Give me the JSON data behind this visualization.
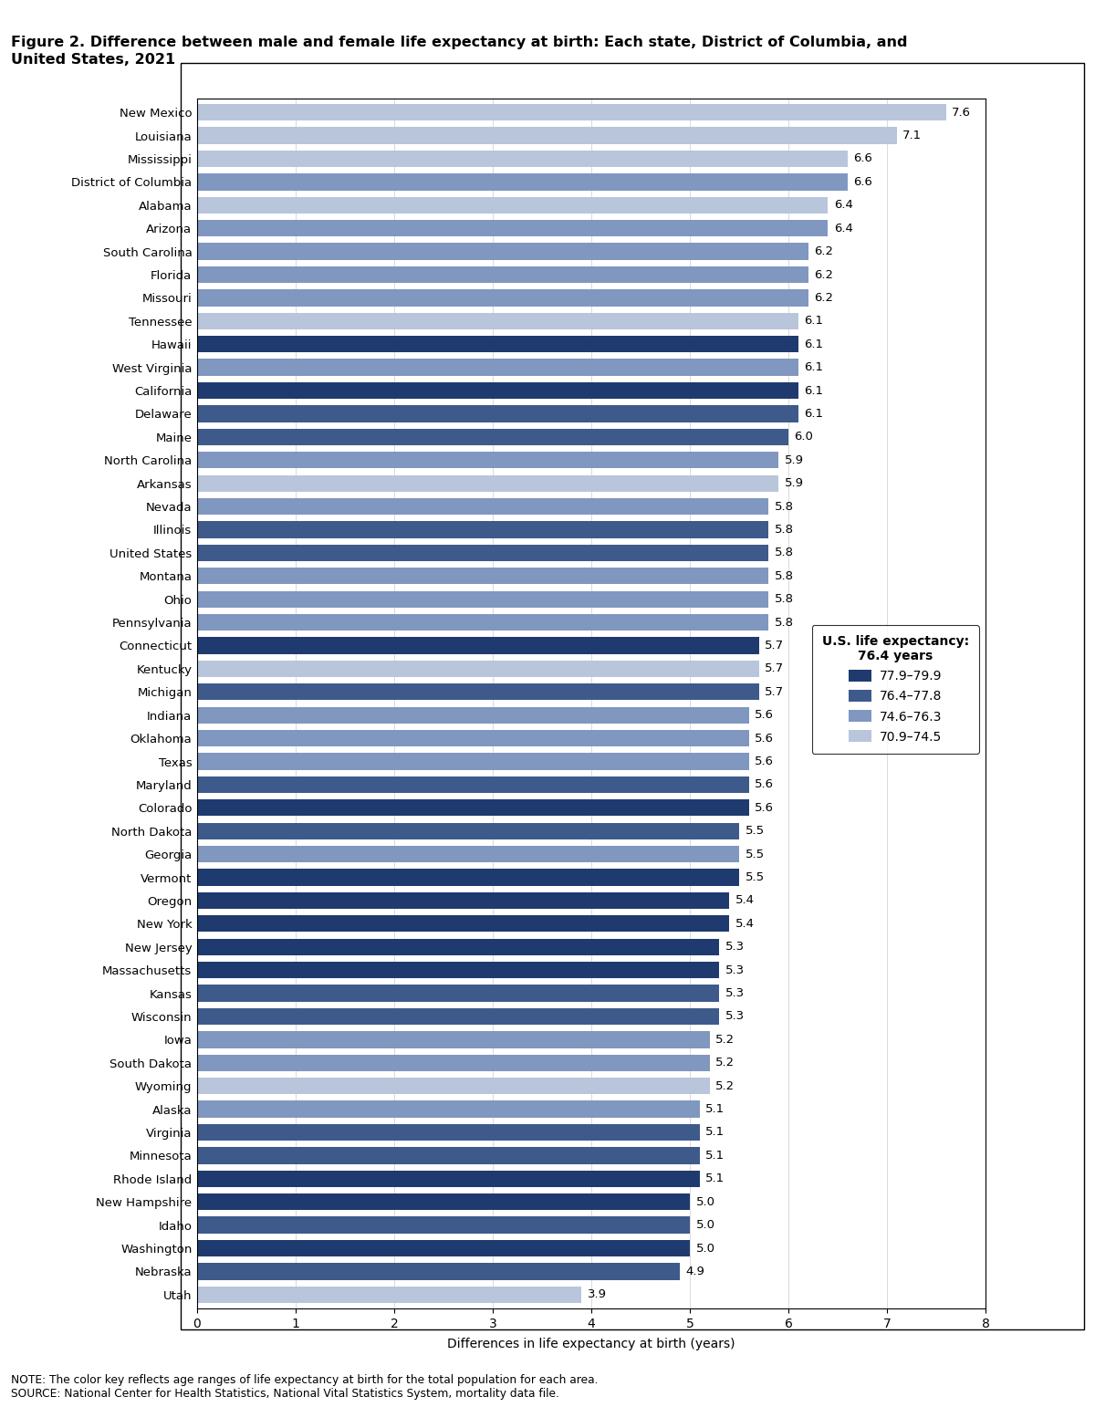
{
  "title": "Figure 2. Difference between male and female life expectancy at birth: Each state, District of Columbia, and\nUnited States, 2021",
  "xlabel": "Differences in life expectancy at birth (years)",
  "note": "NOTE: The color key reflects age ranges of life expectancy at birth for the total population for each area.\nSOURCE: National Center for Health Statistics, National Vital Statistics System, mortality data file.",
  "states": [
    "New Mexico",
    "Louisiana",
    "Mississippi",
    "District of Columbia",
    "Alabama",
    "Arizona",
    "South Carolina",
    "Florida",
    "Missouri",
    "Tennessee",
    "Hawaii",
    "West Virginia",
    "California",
    "Delaware",
    "Maine",
    "North Carolina",
    "Arkansas",
    "Nevada",
    "Illinois",
    "United States",
    "Montana",
    "Ohio",
    "Pennsylvania",
    "Connecticut",
    "Kentucky",
    "Michigan",
    "Indiana",
    "Oklahoma",
    "Texas",
    "Maryland",
    "Colorado",
    "North Dakota",
    "Georgia",
    "Vermont",
    "Oregon",
    "New York",
    "New Jersey",
    "Massachusetts",
    "Kansas",
    "Wisconsin",
    "Iowa",
    "South Dakota",
    "Wyoming",
    "Alaska",
    "Virginia",
    "Minnesota",
    "Rhode Island",
    "New Hampshire",
    "Idaho",
    "Washington",
    "Nebraska",
    "Utah"
  ],
  "values": [
    7.6,
    7.1,
    6.6,
    6.6,
    6.4,
    6.4,
    6.2,
    6.2,
    6.2,
    6.1,
    6.1,
    6.1,
    6.1,
    6.1,
    6.0,
    5.9,
    5.9,
    5.8,
    5.8,
    5.8,
    5.8,
    5.8,
    5.8,
    5.7,
    5.7,
    5.7,
    5.6,
    5.6,
    5.6,
    5.6,
    5.6,
    5.5,
    5.5,
    5.5,
    5.4,
    5.4,
    5.3,
    5.3,
    5.3,
    5.3,
    5.2,
    5.2,
    5.2,
    5.1,
    5.1,
    5.1,
    5.1,
    5.0,
    5.0,
    5.0,
    4.9,
    3.9
  ],
  "colors": [
    "#b8c5db",
    "#b8c5db",
    "#b8c5db",
    "#8097bf",
    "#b8c5db",
    "#8097bf",
    "#8097bf",
    "#8097bf",
    "#8097bf",
    "#b8c5db",
    "#1f3a6e",
    "#8097bf",
    "#1f3a6e",
    "#3d5a8a",
    "#3d5a8a",
    "#8097bf",
    "#b8c5db",
    "#8097bf",
    "#3d5a8a",
    "#3d5a8a",
    "#8097bf",
    "#8097bf",
    "#8097bf",
    "#1f3a6e",
    "#b8c5db",
    "#3d5a8a",
    "#8097bf",
    "#8097bf",
    "#8097bf",
    "#3d5a8a",
    "#1f3a6e",
    "#3d5a8a",
    "#8097bf",
    "#1f3a6e",
    "#1f3a6e",
    "#1f3a6e",
    "#1f3a6e",
    "#1f3a6e",
    "#3d5a8a",
    "#3d5a8a",
    "#8097bf",
    "#8097bf",
    "#b8c5db",
    "#8097bf",
    "#3d5a8a",
    "#3d5a8a",
    "#1f3a6e",
    "#1f3a6e",
    "#3d5a8a",
    "#1f3a6e",
    "#3d5a8a",
    "#b8c5db"
  ],
  "color_ranges": {
    "darkest": {
      "range": "77.9–79.9",
      "color": "#1f3a6e"
    },
    "dark": {
      "range": "76.4–77.8",
      "color": "#3d5a8a"
    },
    "medium": {
      "range": "74.6–76.3",
      "color": "#8097bf"
    },
    "light": {
      "range": "70.9–74.5",
      "color": "#b8c5db"
    }
  },
  "legend_title": "U.S. life expectancy:\n76.4 years",
  "xlim": [
    0,
    8
  ],
  "background": "#ffffff"
}
